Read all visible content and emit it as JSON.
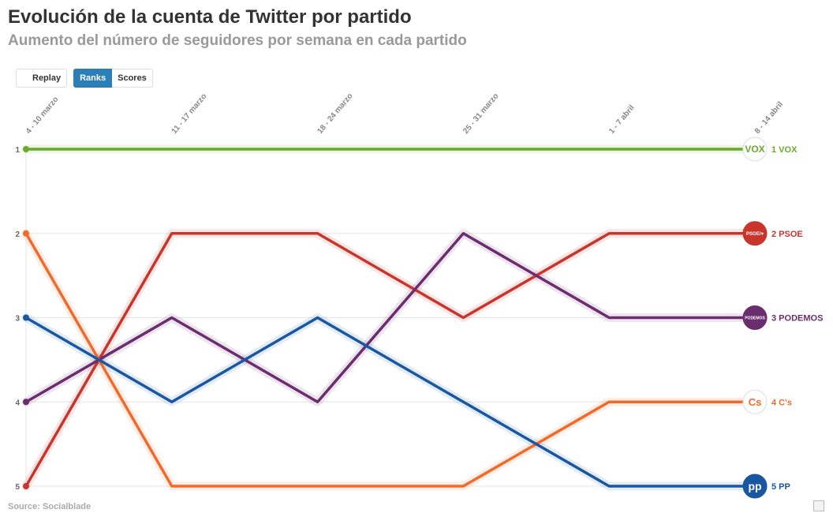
{
  "header": {
    "title": "Evolución de la cuenta de Twitter por partido",
    "subtitle": "Aumento del número de seguidores por semana en cada partido"
  },
  "controls": {
    "replay_label": "Replay",
    "ranks_label": "Ranks",
    "scores_label": "Scores",
    "active_mode": "Ranks"
  },
  "footer": {
    "source": "Source: Socialblade"
  },
  "chart_data": {
    "type": "line",
    "title": "Evolución de la cuenta de Twitter por partido",
    "subtitle": "Aumento del número de seguidores por semana en cada partido",
    "xlabel": "",
    "ylabel": "",
    "categories": [
      "4 - 10 marzo",
      "11 - 17 marzo",
      "18 - 24 marzo",
      "25 - 31 marzo",
      "1 - 7 abril",
      "8 - 14 abril"
    ],
    "yticks": [
      1,
      2,
      3,
      4,
      5
    ],
    "ylim": [
      1,
      5
    ],
    "y_inverted": true,
    "grid": true,
    "series": [
      {
        "name": "VOX",
        "color": "#6aaa2b",
        "values": [
          1,
          1,
          1,
          1,
          1,
          1
        ],
        "end_label": "1 VOX",
        "logo_icon": "vox-logo-icon",
        "logo_text": "VOX"
      },
      {
        "name": "PSOE",
        "color": "#c8352c",
        "values": [
          5,
          2,
          2,
          3,
          2,
          2
        ],
        "end_label": "2 PSOE",
        "logo_icon": "psoe-logo-icon",
        "logo_text": "PSOE/♥"
      },
      {
        "name": "PODEMOS",
        "color": "#6b2d6e",
        "values": [
          4,
          3,
          4,
          2,
          3,
          3
        ],
        "end_label": "3 PODEMOS",
        "logo_icon": "podemos-logo-icon",
        "logo_text": "PODEMOS"
      },
      {
        "name": "C's",
        "color": "#f06a2b",
        "values": [
          2,
          5,
          5,
          5,
          4,
          4
        ],
        "end_label": "4 C's",
        "logo_icon": "cs-logo-icon",
        "logo_text": "Cs"
      },
      {
        "name": "PP",
        "color": "#1957a1",
        "values": [
          3,
          4,
          3,
          4,
          5,
          5
        ],
        "end_label": "5 PP",
        "logo_icon": "pp-logo-icon",
        "logo_text": "pp"
      }
    ]
  }
}
